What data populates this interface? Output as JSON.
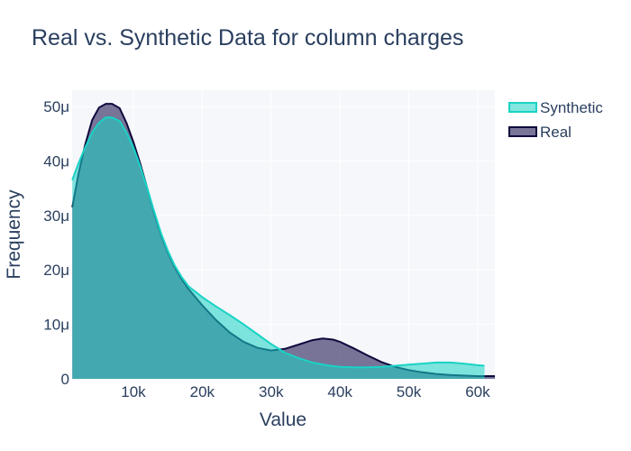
{
  "chart_data": {
    "type": "area",
    "title": "Real vs. Synthetic Data for column charges",
    "xlabel": "Value",
    "ylabel": "Frequency",
    "xlim": [
      1100,
      62500
    ],
    "ylim": [
      0,
      5.3e-05
    ],
    "x_ticks": [
      {
        "value": 10000,
        "label": "10k"
      },
      {
        "value": 20000,
        "label": "20k"
      },
      {
        "value": 30000,
        "label": "30k"
      },
      {
        "value": 40000,
        "label": "40k"
      },
      {
        "value": 50000,
        "label": "50k"
      },
      {
        "value": 60000,
        "label": "60k"
      }
    ],
    "y_ticks": [
      {
        "value": 0,
        "label": "0"
      },
      {
        "value": 1e-05,
        "label": "10μ"
      },
      {
        "value": 2e-05,
        "label": "20μ"
      },
      {
        "value": 3e-05,
        "label": "30μ"
      },
      {
        "value": 4e-05,
        "label": "40μ"
      },
      {
        "value": 5e-05,
        "label": "50μ"
      }
    ],
    "grid": true,
    "legend_position": "top-right",
    "series": [
      {
        "name": "Real",
        "line_color": "#0d0a3d",
        "fill_color": "rgba(66,60,110,0.70)",
        "x": [
          1122,
          2000,
          3000,
          4000,
          5000,
          6000,
          6900,
          8000,
          9000,
          10000,
          11000,
          12000,
          13000,
          14000,
          15000,
          16000,
          17000,
          18000,
          20000,
          22000,
          24000,
          26000,
          28000,
          30000,
          32000,
          34000,
          36000,
          37500,
          39000,
          40000,
          42000,
          44000,
          46000,
          48000,
          50000,
          52000,
          54000,
          56000,
          58000,
          60000,
          62500
        ],
        "y": [
          3.15e-05,
          3.75e-05,
          4.3e-05,
          4.75e-05,
          4.98e-05,
          5.05e-05,
          5.05e-05,
          4.97e-05,
          4.7e-05,
          4.35e-05,
          3.95e-05,
          3.5e-05,
          3.05e-05,
          2.65e-05,
          2.32e-05,
          2.05e-05,
          1.83e-05,
          1.65e-05,
          1.35e-05,
          1.08e-05,
          8.5e-06,
          6.8e-06,
          5.7e-06,
          5.2e-06,
          5.5e-06,
          6.3e-06,
          7.1e-06,
          7.4e-06,
          7.2e-06,
          6.8e-06,
          5.6e-06,
          4.3e-06,
          3.1e-06,
          2.2e-06,
          1.6e-06,
          1.2e-06,
          9e-07,
          7e-07,
          6e-07,
          5e-07,
          5e-07
        ]
      },
      {
        "name": "Synthetic",
        "line_color": "#19d3c5",
        "fill_color": "rgba(25,211,197,0.55)",
        "x": [
          1122,
          2000,
          3000,
          4000,
          5000,
          6000,
          6900,
          8000,
          9000,
          10000,
          11000,
          12000,
          13000,
          14000,
          15000,
          16000,
          17000,
          18000,
          20000,
          22000,
          24000,
          26000,
          28000,
          30000,
          32000,
          34000,
          36000,
          38000,
          40000,
          42000,
          44000,
          46000,
          48000,
          50000,
          52000,
          54000,
          56000,
          58000,
          60000,
          61000
        ],
        "y": [
          3.65e-05,
          3.95e-05,
          4.25e-05,
          4.52e-05,
          4.7e-05,
          4.8e-05,
          4.8e-05,
          4.73e-05,
          4.52e-05,
          4.25e-05,
          3.9e-05,
          3.5e-05,
          3.08e-05,
          2.68e-05,
          2.35e-05,
          2.08e-05,
          1.87e-05,
          1.7e-05,
          1.5e-05,
          1.33e-05,
          1.17e-05,
          1e-05,
          8.2e-06,
          6.4e-06,
          4.8e-06,
          3.8e-06,
          3e-06,
          2.5e-06,
          2.2e-06,
          2.1e-06,
          2.1e-06,
          2.2e-06,
          2.4e-06,
          2.6e-06,
          2.8e-06,
          3e-06,
          3e-06,
          2.8e-06,
          2.5e-06,
          2.4e-06
        ]
      }
    ]
  }
}
